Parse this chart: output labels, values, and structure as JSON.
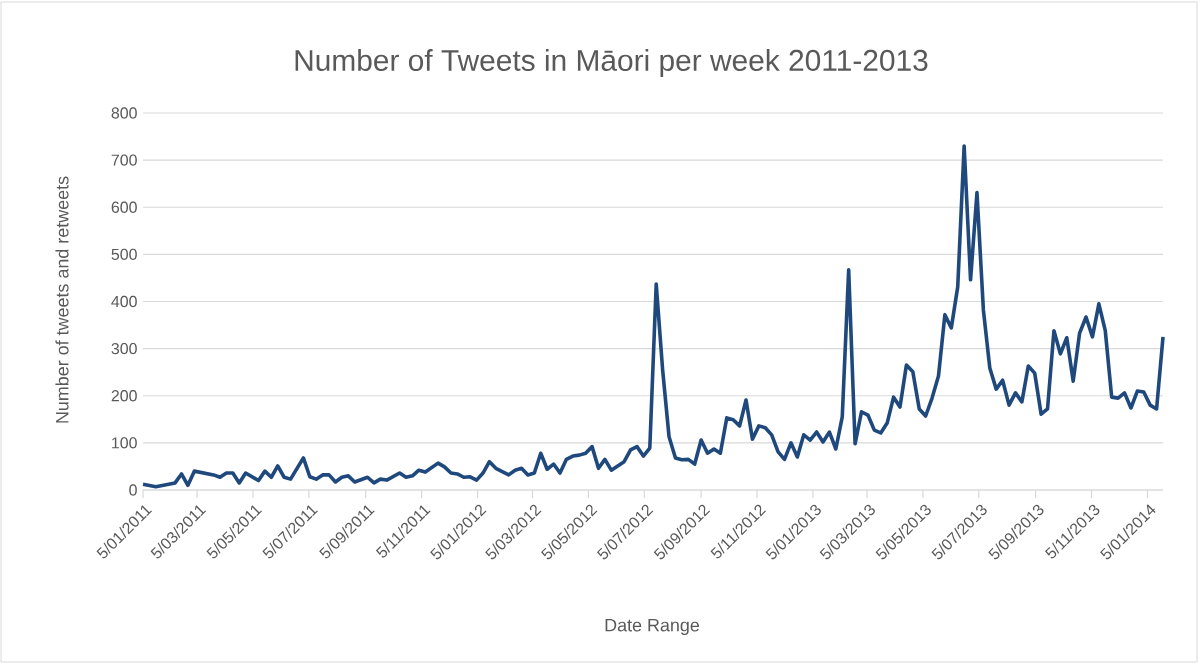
{
  "chart_data": {
    "type": "line",
    "title": "Number of Tweets in Māori per week 2011-2013",
    "xlabel": "Date Range",
    "ylabel": "Number of tweets and retweets",
    "x": [
      "2011-01-05",
      "2011-01-19",
      "2011-02-09",
      "2011-02-16",
      "2011-02-23",
      "2011-03-02",
      "2011-03-23",
      "2011-03-30",
      "2011-04-06",
      "2011-04-13",
      "2011-04-20",
      "2011-04-27",
      "2011-05-11",
      "2011-05-18",
      "2011-05-25",
      "2011-06-01",
      "2011-06-08",
      "2011-06-15",
      "2011-06-29",
      "2011-07-06",
      "2011-07-13",
      "2011-07-20",
      "2011-07-27",
      "2011-08-03",
      "2011-08-10",
      "2011-08-17",
      "2011-08-24",
      "2011-09-07",
      "2011-09-14",
      "2011-09-21",
      "2011-09-28",
      "2011-10-12",
      "2011-10-19",
      "2011-10-26",
      "2011-11-02",
      "2011-11-09",
      "2011-11-23",
      "2011-11-30",
      "2011-12-07",
      "2011-12-14",
      "2011-12-21",
      "2011-12-28",
      "2012-01-04",
      "2012-01-11",
      "2012-01-18",
      "2012-01-25",
      "2012-02-08",
      "2012-02-15",
      "2012-02-22",
      "2012-02-29",
      "2012-03-07",
      "2012-03-14",
      "2012-03-21",
      "2012-03-28",
      "2012-04-04",
      "2012-04-11",
      "2012-04-18",
      "2012-04-25",
      "2012-05-02",
      "2012-05-09",
      "2012-05-16",
      "2012-05-23",
      "2012-05-30",
      "2012-06-06",
      "2012-06-13",
      "2012-06-20",
      "2012-06-27",
      "2012-07-04",
      "2012-07-11",
      "2012-07-18",
      "2012-07-25",
      "2012-08-01",
      "2012-08-08",
      "2012-08-15",
      "2012-08-22",
      "2012-08-29",
      "2012-09-05",
      "2012-09-12",
      "2012-09-19",
      "2012-09-26",
      "2012-10-03",
      "2012-10-10",
      "2012-10-17",
      "2012-10-24",
      "2012-10-31",
      "2012-11-07",
      "2012-11-14",
      "2012-11-21",
      "2012-11-28",
      "2012-12-05",
      "2012-12-12",
      "2012-12-19",
      "2012-12-26",
      "2013-01-02",
      "2013-01-09",
      "2013-01-16",
      "2013-01-23",
      "2013-01-30",
      "2013-02-06",
      "2013-02-13",
      "2013-02-20",
      "2013-02-27",
      "2013-03-06",
      "2013-03-13",
      "2013-03-20",
      "2013-03-27",
      "2013-04-03",
      "2013-04-10",
      "2013-04-17",
      "2013-04-24",
      "2013-05-01",
      "2013-05-08",
      "2013-05-15",
      "2013-05-22",
      "2013-05-29",
      "2013-06-05",
      "2013-06-12",
      "2013-06-19",
      "2013-06-26",
      "2013-07-03",
      "2013-07-10",
      "2013-07-17",
      "2013-07-24",
      "2013-07-31",
      "2013-08-07",
      "2013-08-14",
      "2013-08-21",
      "2013-08-28",
      "2013-09-04",
      "2013-09-11",
      "2013-09-18",
      "2013-09-25",
      "2013-10-02",
      "2013-10-09",
      "2013-10-16",
      "2013-10-23",
      "2013-10-30",
      "2013-11-06",
      "2013-11-13",
      "2013-11-20",
      "2013-11-27",
      "2013-12-04",
      "2013-12-11",
      "2013-12-18",
      "2013-12-25",
      "2014-01-01",
      "2014-01-08",
      "2014-01-15",
      "2014-01-22"
    ],
    "series": [
      {
        "color": "#1f497d",
        "values": [
          12,
          7,
          15,
          34,
          10,
          40,
          32,
          27,
          36,
          36,
          15,
          36,
          20,
          40,
          27,
          51,
          27,
          23,
          68,
          28,
          23,
          32,
          32,
          17,
          27,
          30,
          17,
          27,
          15,
          23,
          21,
          36,
          27,
          30,
          42,
          38,
          57,
          49,
          36,
          34,
          27,
          28,
          21,
          36,
          60,
          46,
          32,
          42,
          46,
          32,
          36,
          78,
          44,
          55,
          36,
          65,
          72,
          74,
          78,
          92,
          46,
          65,
          42,
          51,
          60,
          85,
          92,
          72,
          89,
          437,
          255,
          113,
          68,
          64,
          65,
          55,
          106,
          78,
          87,
          78,
          153,
          149,
          136,
          191,
          108,
          136,
          132,
          117,
          81,
          65,
          100,
          70,
          117,
          106,
          123,
          102,
          123,
          87,
          155,
          467,
          98,
          166,
          159,
          127,
          121,
          142,
          197,
          176,
          265,
          251,
          172,
          157,
          195,
          242,
          372,
          344,
          431,
          730,
          446,
          631,
          382,
          259,
          214,
          233,
          180,
          206,
          187,
          263,
          248,
          161,
          172,
          338,
          289,
          323,
          231,
          333,
          367,
          325,
          395,
          338,
          197,
          195,
          206,
          174,
          210,
          208,
          180,
          172,
          325
        ]
      }
    ],
    "xlim": [
      "2011-01-05",
      "2014-01-22"
    ],
    "xticks": [
      {
        "value": "2011-01-05",
        "label": "5/01/2011"
      },
      {
        "value": "2011-03-05",
        "label": "5/03/2011"
      },
      {
        "value": "2011-05-05",
        "label": "5/05/2011"
      },
      {
        "value": "2011-07-05",
        "label": "5/07/2011"
      },
      {
        "value": "2011-09-05",
        "label": "5/09/2011"
      },
      {
        "value": "2011-11-05",
        "label": "5/11/2011"
      },
      {
        "value": "2012-01-05",
        "label": "5/01/2012"
      },
      {
        "value": "2012-03-05",
        "label": "5/03/2012"
      },
      {
        "value": "2012-05-05",
        "label": "5/05/2012"
      },
      {
        "value": "2012-07-05",
        "label": "5/07/2012"
      },
      {
        "value": "2012-09-05",
        "label": "5/09/2012"
      },
      {
        "value": "2012-11-05",
        "label": "5/11/2012"
      },
      {
        "value": "2013-01-05",
        "label": "5/01/2013"
      },
      {
        "value": "2013-03-05",
        "label": "5/03/2013"
      },
      {
        "value": "2013-05-05",
        "label": "5/05/2013"
      },
      {
        "value": "2013-07-05",
        "label": "5/07/2013"
      },
      {
        "value": "2013-09-05",
        "label": "5/09/2013"
      },
      {
        "value": "2013-11-05",
        "label": "5/11/2013"
      },
      {
        "value": "2014-01-05",
        "label": "5/01/2014"
      }
    ],
    "ylim": [
      0,
      800
    ],
    "yticks": [
      0,
      100,
      200,
      300,
      400,
      500,
      600,
      700,
      800
    ],
    "grid": "y"
  }
}
